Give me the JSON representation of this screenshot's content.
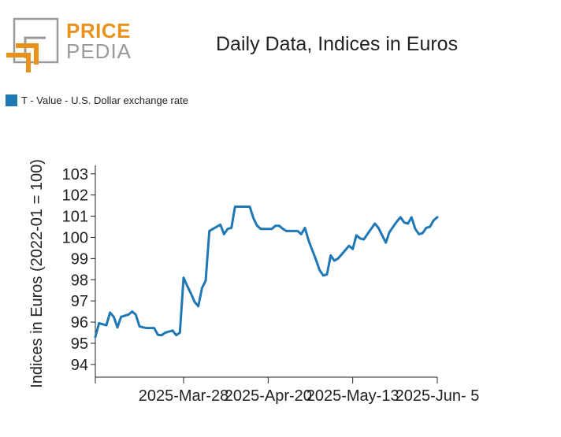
{
  "logo": {
    "word1": "PRICE",
    "word2": "PEDIA"
  },
  "chart_data": {
    "type": "line",
    "title": "Daily Data, Indices in Euros",
    "ylabel": "Indices in Euros (2022-01 = 100)",
    "xlabel": "",
    "ylim": [
      93.4,
      103.4
    ],
    "xlim": [
      "2025-03-04",
      "2025-06-05"
    ],
    "yticks": [
      94,
      95,
      96,
      97,
      98,
      99,
      100,
      101,
      102,
      103
    ],
    "xticks": [
      {
        "date": "2025-03-28",
        "label": "2025-Mar-28"
      },
      {
        "date": "2025-04-20",
        "label": "2025-Apr-20"
      },
      {
        "date": "2025-05-13",
        "label": "2025-May-13"
      },
      {
        "date": "2025-06-05",
        "label": "2025-Jun- 5"
      }
    ],
    "legend_position": "top-left",
    "series": [
      {
        "name": "T - Value - U.S. Dollar exchange rate",
        "color": "#1f77b4",
        "x": [
          "2025-03-04",
          "2025-03-05",
          "2025-03-07",
          "2025-03-08",
          "2025-03-09",
          "2025-03-10",
          "2025-03-11",
          "2025-03-12",
          "2025-03-13",
          "2025-03-14",
          "2025-03-15",
          "2025-03-16",
          "2025-03-17",
          "2025-03-18",
          "2025-03-19",
          "2025-03-20",
          "2025-03-21",
          "2025-03-22",
          "2025-03-23",
          "2025-03-24",
          "2025-03-25",
          "2025-03-26",
          "2025-03-27",
          "2025-03-28",
          "2025-03-29",
          "2025-03-30",
          "2025-03-31",
          "2025-04-01",
          "2025-04-02",
          "2025-04-03",
          "2025-04-04",
          "2025-04-05",
          "2025-04-06",
          "2025-04-07",
          "2025-04-08",
          "2025-04-09",
          "2025-04-10",
          "2025-04-11",
          "2025-04-12",
          "2025-04-13",
          "2025-04-14",
          "2025-04-15",
          "2025-04-16",
          "2025-04-17",
          "2025-04-18",
          "2025-04-19",
          "2025-04-20",
          "2025-04-21",
          "2025-04-22",
          "2025-04-23",
          "2025-04-24",
          "2025-04-25",
          "2025-04-26",
          "2025-04-27",
          "2025-04-28",
          "2025-04-29",
          "2025-04-30",
          "2025-05-01",
          "2025-05-02",
          "2025-05-03",
          "2025-05-04",
          "2025-05-05",
          "2025-05-06",
          "2025-05-07",
          "2025-05-08",
          "2025-05-09",
          "2025-05-10",
          "2025-05-11",
          "2025-05-12",
          "2025-05-13",
          "2025-05-14",
          "2025-05-15",
          "2025-05-16",
          "2025-05-17",
          "2025-05-18",
          "2025-05-19",
          "2025-05-20",
          "2025-05-21",
          "2025-05-22",
          "2025-05-23",
          "2025-05-24",
          "2025-05-25",
          "2025-05-26",
          "2025-05-27",
          "2025-05-28",
          "2025-05-29",
          "2025-05-30",
          "2025-05-31",
          "2025-06-01",
          "2025-06-02",
          "2025-06-03",
          "2025-06-04",
          "2025-06-05"
        ],
        "y": [
          95.3,
          95.95,
          95.85,
          96.45,
          96.25,
          95.75,
          96.25,
          96.3,
          96.35,
          96.5,
          96.35,
          95.8,
          95.75,
          95.72,
          95.72,
          95.72,
          95.4,
          95.38,
          95.5,
          95.55,
          95.6,
          95.38,
          95.5,
          98.1,
          97.7,
          97.35,
          96.95,
          96.75,
          97.6,
          97.95,
          100.3,
          100.4,
          100.5,
          100.6,
          100.15,
          100.4,
          100.45,
          101.45,
          101.45,
          101.45,
          101.45,
          101.45,
          100.9,
          100.55,
          100.4,
          100.4,
          100.4,
          100.4,
          100.55,
          100.55,
          100.4,
          100.3,
          100.3,
          100.3,
          100.3,
          100.15,
          100.45,
          99.85,
          99.4,
          98.95,
          98.45,
          98.2,
          98.25,
          99.15,
          98.9,
          99.0,
          99.2,
          99.4,
          99.6,
          99.45,
          100.1,
          99.95,
          99.9,
          100.15,
          100.4,
          100.65,
          100.45,
          100.1,
          99.75,
          100.25,
          100.5,
          100.75,
          100.95,
          100.7,
          100.65,
          100.95,
          100.4,
          100.15,
          100.2,
          100.45,
          100.5,
          100.8,
          100.95
        ]
      }
    ]
  }
}
